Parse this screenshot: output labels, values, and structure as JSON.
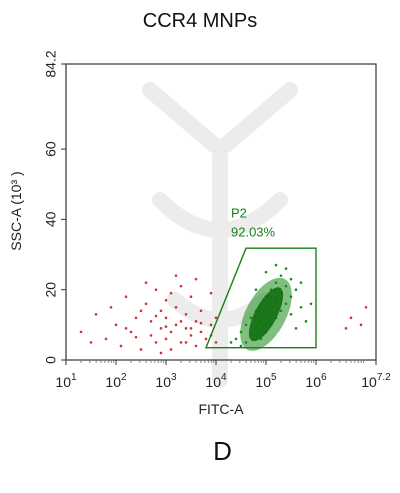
{
  "chart_data": {
    "type": "scatter",
    "title": "CCR4 MNPs",
    "xlabel": "FITC-A",
    "ylabel": "SSC-A (10³ )",
    "x_scale": "log10",
    "xlim": [
      1,
      7.2
    ],
    "ylim": [
      0,
      84.2
    ],
    "x_ticks": [
      {
        "value": 1,
        "base": "10",
        "exp": "1"
      },
      {
        "value": 2,
        "base": "10",
        "exp": "2"
      },
      {
        "value": 3,
        "base": "10",
        "exp": "3"
      },
      {
        "value": 4,
        "base": "10",
        "exp": "4"
      },
      {
        "value": 5,
        "base": "10",
        "exp": "5"
      },
      {
        "value": 6,
        "base": "10",
        "exp": "6"
      },
      {
        "value": 7.2,
        "base": "10",
        "exp": "7.2"
      }
    ],
    "y_ticks": [
      {
        "value": 0,
        "label": "0"
      },
      {
        "value": 20,
        "label": "20"
      },
      {
        "value": 40,
        "label": "40"
      },
      {
        "value": 60,
        "label": "60"
      },
      {
        "value": 84.2,
        "label": "84.2"
      }
    ],
    "gate": {
      "name": "P2",
      "percent": "92.03%",
      "color": "#1a7f1a",
      "polygon": [
        [
          3.8,
          3.5
        ],
        [
          4.6,
          31.8
        ],
        [
          6.0,
          31.8
        ],
        [
          6.0,
          3.5
        ]
      ]
    },
    "series": [
      {
        "color": "#cc3333",
        "points": [
          [
            1.3,
            8
          ],
          [
            1.5,
            5
          ],
          [
            1.6,
            13
          ],
          [
            1.8,
            6
          ],
          [
            1.9,
            15
          ],
          [
            2.0,
            10
          ],
          [
            2.1,
            4
          ],
          [
            2.2,
            18
          ],
          [
            2.3,
            8
          ],
          [
            2.4,
            12
          ],
          [
            2.5,
            3
          ],
          [
            2.6,
            16
          ],
          [
            2.7,
            7
          ],
          [
            2.7,
            11
          ],
          [
            2.8,
            20
          ],
          [
            2.8,
            5
          ],
          [
            2.9,
            9
          ],
          [
            2.9,
            14
          ],
          [
            3.0,
            6
          ],
          [
            3.0,
            12
          ],
          [
            3.0,
            17
          ],
          [
            3.1,
            8
          ],
          [
            3.1,
            3
          ],
          [
            3.2,
            10
          ],
          [
            3.2,
            15
          ],
          [
            3.3,
            5
          ],
          [
            3.3,
            21
          ],
          [
            3.4,
            9
          ],
          [
            3.4,
            13
          ],
          [
            3.5,
            7
          ],
          [
            3.5,
            18
          ],
          [
            3.6,
            4
          ],
          [
            3.6,
            11
          ],
          [
            3.7,
            8
          ],
          [
            3.7,
            14
          ],
          [
            3.8,
            6
          ],
          [
            3.9,
            10
          ],
          [
            3.9,
            19
          ],
          [
            4.0,
            12
          ],
          [
            4.0,
            5
          ],
          [
            2.6,
            22
          ],
          [
            3.2,
            24
          ],
          [
            3.6,
            23
          ],
          [
            2.2,
            9
          ],
          [
            2.5,
            14
          ],
          [
            3.1,
            19
          ],
          [
            3.4,
            5
          ],
          [
            2.9,
            2
          ],
          [
            3.0,
            9.5
          ],
          [
            3.3,
            11
          ],
          [
            3.5,
            9
          ],
          [
            2.8,
            12.5
          ],
          [
            3.7,
            10.5
          ],
          [
            2.4,
            6.5
          ],
          [
            3.9,
            7
          ],
          [
            6.6,
            9
          ],
          [
            6.7,
            12
          ],
          [
            6.9,
            10
          ],
          [
            7.0,
            15
          ]
        ]
      },
      {
        "color": "#1a8a1a",
        "points": [
          [
            4.4,
            6
          ],
          [
            4.5,
            8
          ],
          [
            4.6,
            10
          ],
          [
            4.7,
            12
          ],
          [
            4.7,
            7
          ],
          [
            4.8,
            14
          ],
          [
            4.8,
            9
          ],
          [
            4.9,
            16
          ],
          [
            4.9,
            11
          ],
          [
            5.0,
            18
          ],
          [
            5.0,
            13
          ],
          [
            5.0,
            8
          ],
          [
            5.1,
            20
          ],
          [
            5.1,
            15
          ],
          [
            5.1,
            10
          ],
          [
            5.2,
            22
          ],
          [
            5.2,
            17
          ],
          [
            5.2,
            12
          ],
          [
            5.3,
            24
          ],
          [
            5.3,
            19
          ],
          [
            5.3,
            14
          ],
          [
            5.4,
            26
          ],
          [
            5.4,
            21
          ],
          [
            5.4,
            16
          ],
          [
            5.5,
            18
          ],
          [
            5.5,
            13
          ],
          [
            5.6,
            20
          ],
          [
            5.6,
            9
          ],
          [
            5.7,
            15
          ],
          [
            5.8,
            11
          ],
          [
            4.5,
            4
          ],
          [
            4.6,
            5
          ],
          [
            4.3,
            5
          ],
          [
            4.9,
            6
          ],
          [
            5.0,
            25
          ],
          [
            5.2,
            27
          ],
          [
            5.5,
            23
          ],
          [
            4.8,
            20
          ],
          [
            5.7,
            22
          ],
          [
            5.9,
            16
          ]
        ]
      }
    ]
  },
  "panel_label": "D"
}
